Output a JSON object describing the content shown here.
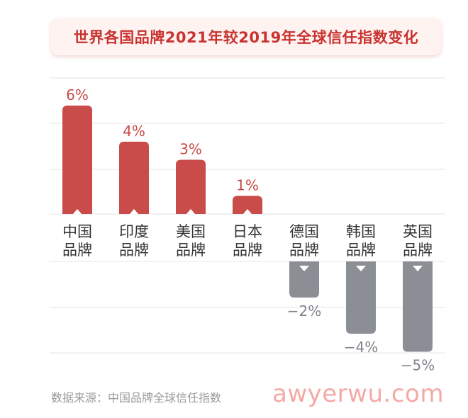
{
  "title": "世界各国品牌2021年较2019年全球信任指数变化",
  "source": "数据来源：中国品牌全球信任指数",
  "watermark": "awyerwu.com",
  "colors": {
    "positive": "#c94b4a",
    "negative": "#8b8e95",
    "positive_label": "#c94b4a",
    "negative_label": "#808389",
    "grid": "#e5e5e5",
    "category_label": "#333333"
  },
  "chart_data": {
    "type": "bar",
    "title": "世界各国品牌2021年较2019年全球信任指数变化",
    "categories": [
      [
        "中国",
        "品牌"
      ],
      [
        "印度",
        "品牌"
      ],
      [
        "美国",
        "品牌"
      ],
      [
        "日本",
        "品牌"
      ],
      [
        "德国",
        "品牌"
      ],
      [
        "韩国",
        "品牌"
      ],
      [
        "英国",
        "品牌"
      ]
    ],
    "values": [
      6,
      4,
      3,
      1,
      -2,
      -4,
      -5
    ],
    "value_labels": [
      "6%",
      "4%",
      "3%",
      "1%",
      "−2%",
      "−4%",
      "−5%"
    ],
    "unit": "%",
    "ylim": [
      -5,
      6
    ],
    "grid": true,
    "xlabel": "",
    "ylabel": ""
  }
}
